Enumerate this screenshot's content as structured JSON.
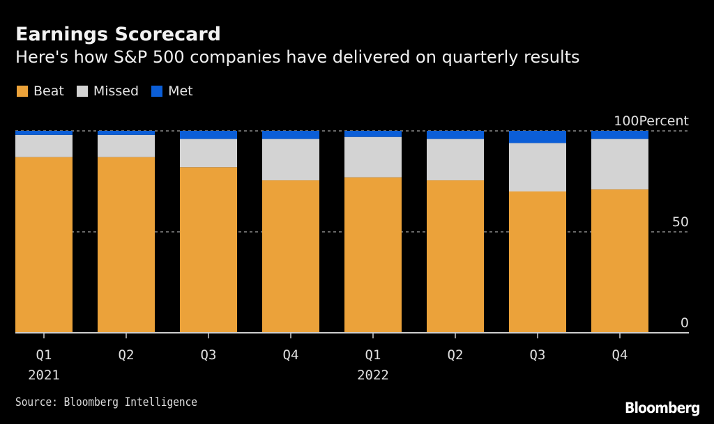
{
  "header": {
    "title": "Earnings Scorecard",
    "subtitle": "Here's how S&P 500 companies have delivered on quarterly results"
  },
  "footer": {
    "source": "Source: Bloomberg Intelligence",
    "logo": "Bloomberg"
  },
  "chart_data": {
    "type": "bar",
    "stacked": true,
    "title": "Earnings Scorecard",
    "subtitle": "Here's how S&P 500 companies have delivered on quarterly results",
    "xlabel": "",
    "ylabel": "Percent",
    "ylim": [
      0,
      100
    ],
    "yticks": [
      0,
      50,
      100
    ],
    "ytick_labels": [
      "0",
      "50",
      "100Percent"
    ],
    "grid": true,
    "legend_position": "top-left",
    "categories": [
      "Q1 2021",
      "Q2 2021",
      "Q3 2021",
      "Q4 2021",
      "Q1 2022",
      "Q2 2022",
      "Q3 2022",
      "Q4 2022"
    ],
    "tick_labels": [
      {
        "quarter": "Q1",
        "year": "2021"
      },
      {
        "quarter": "Q2",
        "year": ""
      },
      {
        "quarter": "Q3",
        "year": ""
      },
      {
        "quarter": "Q4",
        "year": ""
      },
      {
        "quarter": "Q1",
        "year": "2022"
      },
      {
        "quarter": "Q2",
        "year": ""
      },
      {
        "quarter": "Q3",
        "year": ""
      },
      {
        "quarter": "Q4",
        "year": ""
      }
    ],
    "series": [
      {
        "name": "Beat",
        "color": "#eba23a",
        "values": [
          87,
          87,
          82,
          75.5,
          77,
          75.5,
          70,
          71
        ]
      },
      {
        "name": "Missed",
        "color": "#d3d3d3",
        "values": [
          11,
          11,
          14,
          20.5,
          20,
          20.5,
          24,
          25
        ]
      },
      {
        "name": "Met",
        "color": "#0b5ed7",
        "values": [
          2,
          2,
          4,
          4,
          3,
          4,
          6,
          4
        ]
      }
    ],
    "source": "Source: Bloomberg Intelligence"
  }
}
